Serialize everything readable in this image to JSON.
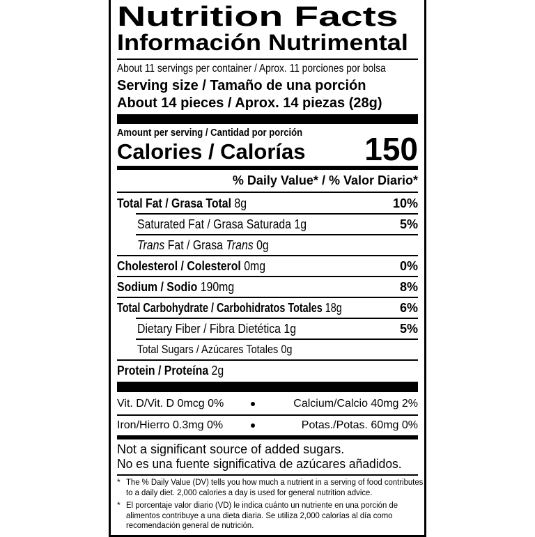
{
  "label": {
    "title": "Nutrition Facts",
    "subtitle": "Información Nutrimental",
    "servings": "About 11 servings per container / Aprox. 11 porciones por bolsa",
    "serving_size_label": "Serving size / Tamaño de una porción",
    "serving_size_value": "About 14 pieces / Aprox. 14 piezas (28g)",
    "amount_per_serving": "Amount per serving / Cantidad por porción",
    "calories_label": "Calories / Calorías",
    "calories_value": "150",
    "dv_header": "% Daily Value* / % Valor Diario*",
    "nutrients": [
      {
        "name": "Total Fat / Grasa Total",
        "amount": "8g",
        "dv": "10%"
      },
      {
        "name": "Saturated Fat / Grasa Saturada",
        "amount": "1g",
        "dv": "5%"
      },
      {
        "name": [
          "Trans",
          "Fat / Grasa",
          "Trans"
        ],
        "amount": "0g"
      },
      {
        "name": "Cholesterol / Colesterol",
        "amount": "0mg",
        "dv": "0%"
      },
      {
        "name": "Sodium / Sodio",
        "amount": "190mg",
        "dv": "8%"
      },
      {
        "name": "Total Carbohydrate / Carbohidratos Totales",
        "amount": "18g",
        "dv": "6%"
      },
      {
        "name": "Dietary Fiber / Fibra Dietética",
        "amount": "1g",
        "dv": "5%"
      },
      {
        "name": "Total Sugars / Azúcares Totales",
        "amount": "0g"
      },
      {
        "name": "Protein / Proteína",
        "amount": "2g"
      }
    ],
    "vitamins": [
      [
        "Vit. D/Vit. D 0mcg 0%",
        "Calcium/Calcio 40mg 2%"
      ],
      [
        "Iron/Hierro 0.3mg 0%",
        "Potas./Potas. 60mg 0%"
      ]
    ],
    "note": [
      "Not a significant source of added sugars.",
      "No es una fuente significativa de azúcares añadidos."
    ],
    "footnotes": [
      {
        "marker": "*",
        "text": "The % Daily Value (DV) tells you how much a nutrient in a serving of food contributes to a daily diet. 2,000 calories a day is used for general nutrition advice."
      },
      {
        "marker": "*",
        "text": "El porcentaje valor diario (VD) le indica cuánto un nutriente en una porción de alimentos contribuye a una dieta diaria. Se utiliza 2,000 calorías al día como recomendación general de nutrición."
      }
    ]
  }
}
